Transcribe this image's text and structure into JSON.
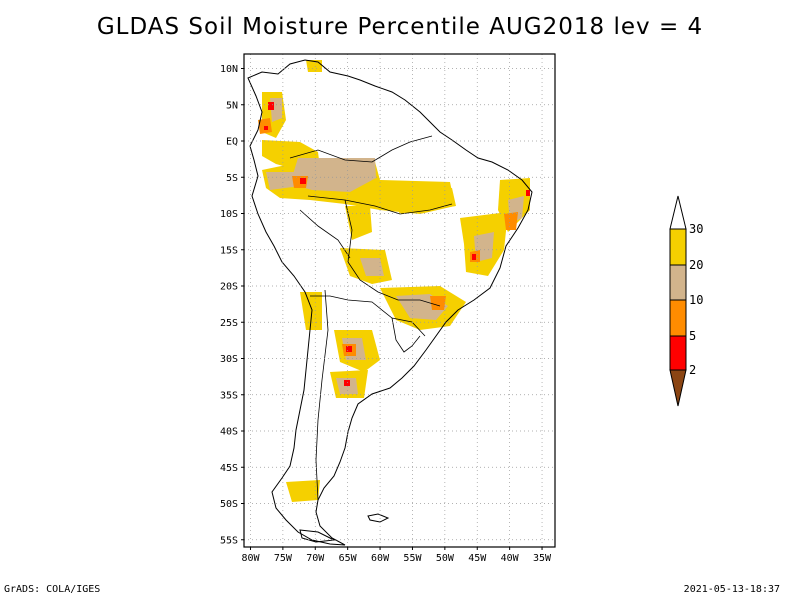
{
  "title": "GLDAS Soil Moisture Percentile AUG2018 lev = 4",
  "footer": {
    "left": "GrADS: COLA/IGES",
    "right": "2021-05-13-18:37"
  },
  "map": {
    "lat_ticks": [
      "10N",
      "5N",
      "EQ",
      "5S",
      "10S",
      "15S",
      "20S",
      "25S",
      "30S",
      "35S",
      "40S",
      "45S",
      "50S",
      "55S"
    ],
    "lon_ticks": [
      "80W",
      "75W",
      "70W",
      "65W",
      "60W",
      "55W",
      "50W",
      "45W",
      "40W",
      "35W"
    ],
    "lat_range": [
      -56,
      12
    ],
    "lon_range": [
      -81,
      -33
    ],
    "gridlines": "dotted"
  },
  "legend": {
    "labels": [
      "30",
      "20",
      "10",
      "5",
      "2"
    ],
    "colors": {
      "above_30": "#ffffff",
      "20_30": "#f5d000",
      "10_20": "#d2b48c",
      "5_10": "#ff8c00",
      "2_5": "#ff0000",
      "below_2": "#8b4513"
    }
  },
  "shading_colors": {
    "yellow": "#f5d000",
    "tan": "#d2b48c",
    "orange": "#ff8c00",
    "red": "#ff0000"
  }
}
